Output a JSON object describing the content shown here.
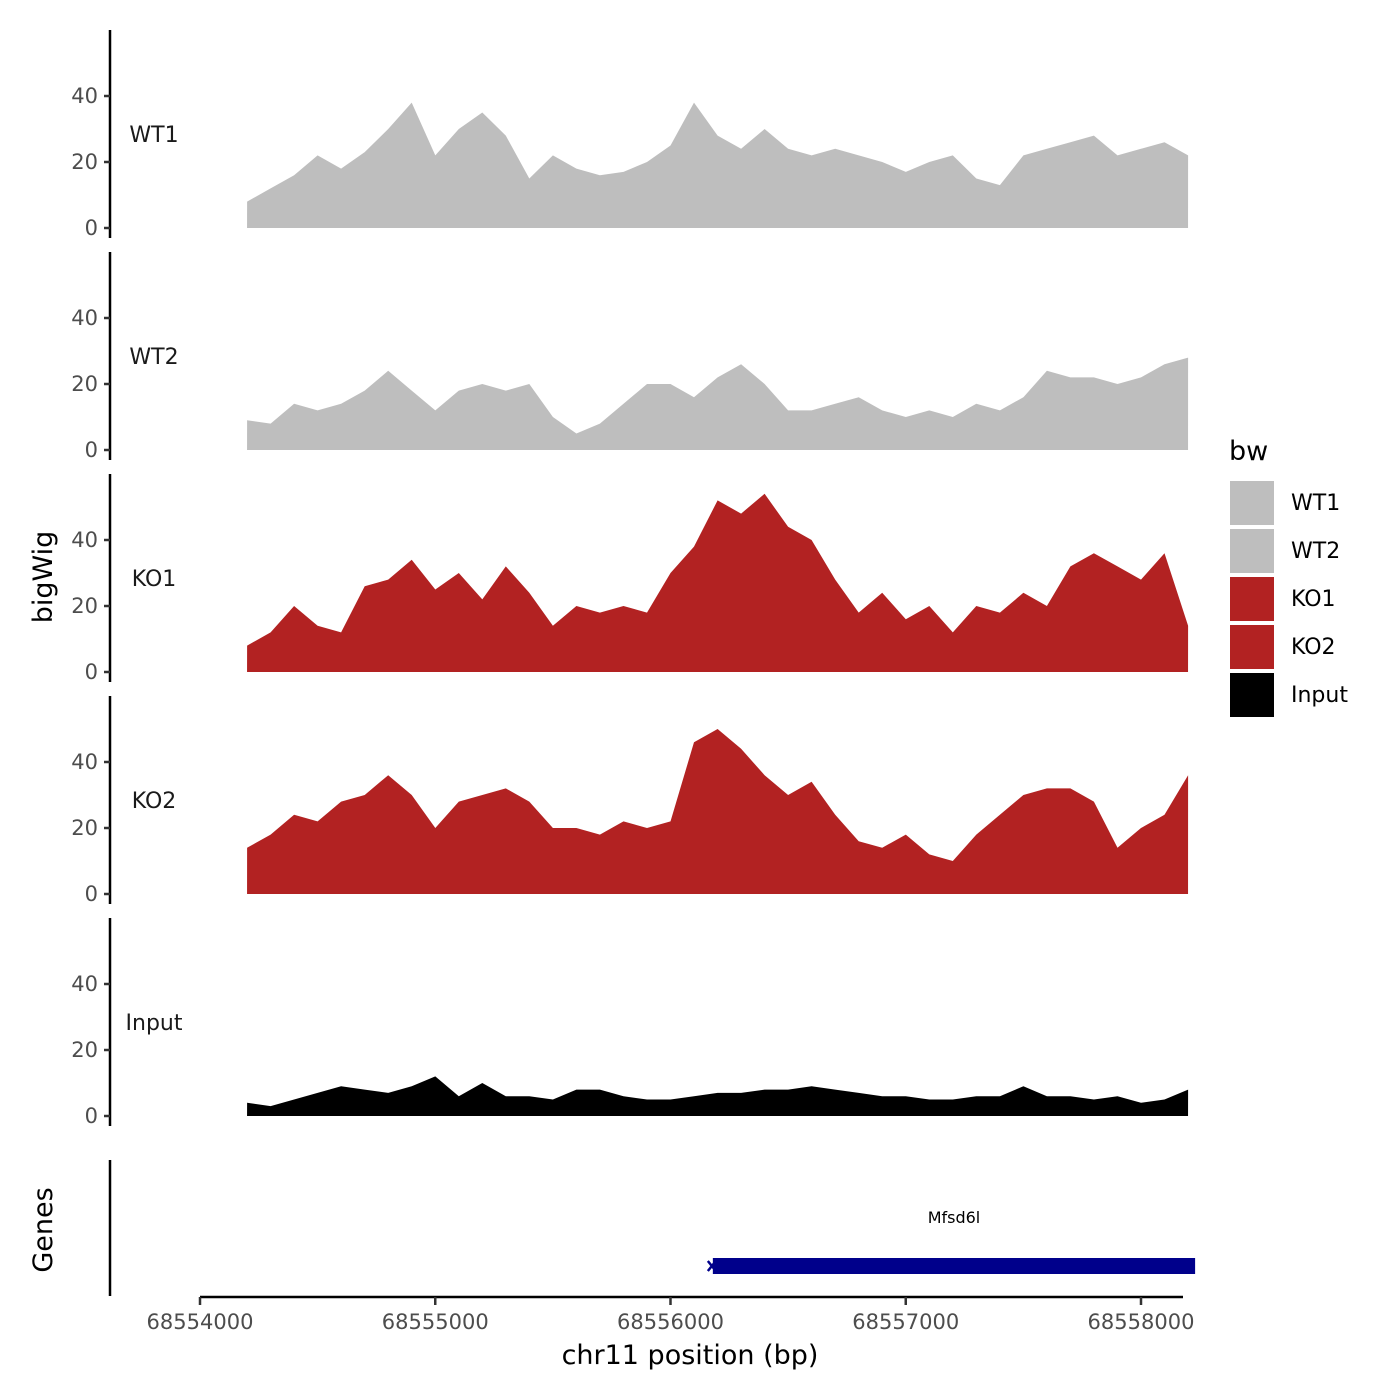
{
  "chart_data": {
    "type": "area",
    "xlabel": "chr11 position (bp)",
    "ylabel": "bigWig",
    "genes_ylabel": "Genes",
    "xlim": [
      68553990,
      68558450
    ],
    "ylim": [
      0,
      60
    ],
    "x_ticks": [
      68554000,
      68555000,
      68556000,
      68557000,
      68558000
    ],
    "x_tick_labels": [
      "68554000",
      "68555000",
      "68556000",
      "68557000",
      "68558000"
    ],
    "y_ticks": [
      0,
      20,
      40
    ],
    "y_tick_labels": [
      "0",
      "20",
      "40"
    ],
    "legend": {
      "title": "bw",
      "placement": "right",
      "entries": [
        {
          "label": "WT1",
          "color": "#bebebe"
        },
        {
          "label": "WT2",
          "color": "#bebebe"
        },
        {
          "label": "KO1",
          "color": "#b22222"
        },
        {
          "label": "KO2",
          "color": "#b22222"
        },
        {
          "label": "Input",
          "color": "#000000"
        }
      ]
    },
    "x": [
      68554200,
      68554300,
      68554400,
      68554500,
      68554600,
      68554700,
      68554800,
      68554900,
      68555000,
      68555100,
      68555200,
      68555300,
      68555400,
      68555500,
      68555600,
      68555700,
      68555800,
      68555900,
      68556000,
      68556100,
      68556200,
      68556300,
      68556400,
      68556500,
      68556600,
      68556700,
      68556800,
      68556900,
      68557000,
      68557100,
      68557200,
      68557300,
      68557400,
      68557500,
      68557600,
      68557700,
      68557800,
      68557900,
      68558000,
      68558100,
      68558200
    ],
    "series": [
      {
        "name": "WT1",
        "color": "#bebebe",
        "values": [
          8,
          12,
          16,
          22,
          18,
          23,
          30,
          38,
          22,
          30,
          35,
          28,
          15,
          22,
          18,
          16,
          17,
          20,
          25,
          38,
          28,
          24,
          30,
          24,
          22,
          24,
          22,
          20,
          17,
          20,
          22,
          15,
          13,
          22,
          24,
          26,
          28,
          22,
          24,
          26,
          22
        ]
      },
      {
        "name": "WT2",
        "color": "#bebebe",
        "values": [
          9,
          8,
          14,
          12,
          14,
          18,
          24,
          18,
          12,
          18,
          20,
          18,
          20,
          10,
          5,
          8,
          14,
          20,
          20,
          16,
          22,
          26,
          20,
          12,
          12,
          14,
          16,
          12,
          10,
          12,
          10,
          14,
          12,
          16,
          24,
          22,
          22,
          20,
          22,
          26,
          28
        ]
      },
      {
        "name": "KO1",
        "color": "#b22222",
        "values": [
          8,
          12,
          20,
          14,
          12,
          26,
          28,
          34,
          25,
          30,
          22,
          32,
          24,
          14,
          20,
          18,
          20,
          18,
          30,
          38,
          52,
          48,
          54,
          44,
          40,
          28,
          18,
          24,
          16,
          20,
          12,
          20,
          18,
          24,
          20,
          32,
          36,
          32,
          28,
          36,
          14
        ]
      },
      {
        "name": "KO2",
        "color": "#b22222",
        "values": [
          14,
          18,
          24,
          22,
          28,
          30,
          36,
          30,
          20,
          28,
          30,
          32,
          28,
          20,
          20,
          18,
          22,
          20,
          22,
          46,
          50,
          44,
          36,
          30,
          34,
          24,
          16,
          14,
          18,
          12,
          10,
          18,
          24,
          30,
          32,
          32,
          28,
          14,
          20,
          24,
          36
        ]
      },
      {
        "name": "Input",
        "color": "#000000",
        "values": [
          4,
          3,
          5,
          7,
          9,
          8,
          7,
          9,
          12,
          6,
          10,
          6,
          6,
          5,
          8,
          8,
          6,
          5,
          5,
          6,
          7,
          7,
          8,
          8,
          9,
          8,
          7,
          6,
          6,
          5,
          5,
          6,
          6,
          9,
          6,
          6,
          5,
          6,
          4,
          5,
          8
        ]
      }
    ],
    "genes": [
      {
        "name": "Mfsd6l",
        "start": 68556180,
        "end": 68558230,
        "color": "#00008b"
      }
    ]
  }
}
